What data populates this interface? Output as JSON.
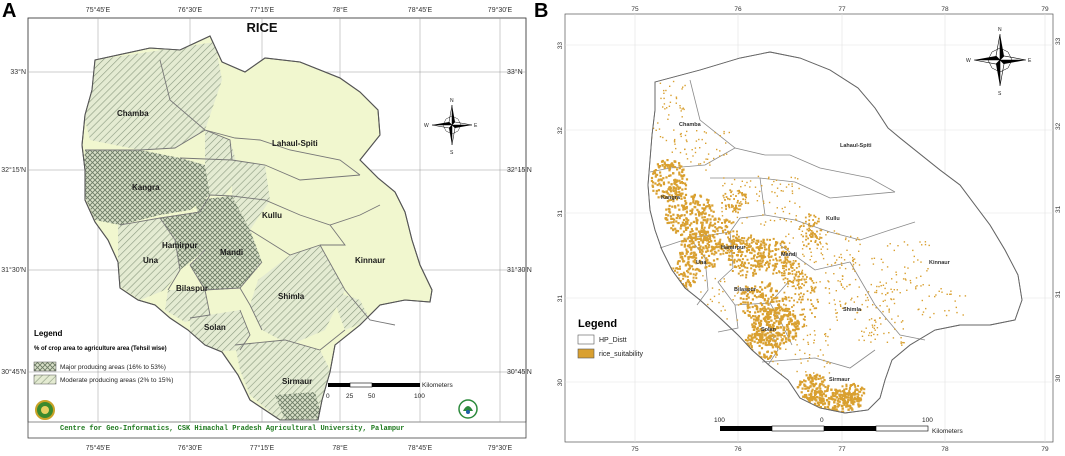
{
  "panel_a": {
    "letter": "A",
    "title": "RICE",
    "lon_ticks": [
      "75°45'E",
      "76°30'E",
      "77°15'E",
      "78°E",
      "78°45'E",
      "79°30'E"
    ],
    "lat_ticks": [
      "33°N",
      "32°15'N",
      "31°30'N",
      "30°45'N"
    ],
    "districts": [
      "Chamba",
      "Lahaul-Spiti",
      "Kangra",
      "Kullu",
      "Hamirpur",
      "Una",
      "Mandi",
      "Kinnaur",
      "Bilaspur",
      "Shimla",
      "Solan",
      "Sirmaur"
    ],
    "legend": {
      "title": "Legend",
      "subtitle": "% of crop area to agriculture area (Tehsil wise)",
      "items": [
        "Major producing areas (16% to 53%)",
        "Moderate producing areas (2% to 15%)"
      ]
    },
    "scale": {
      "unit": "Kilometers",
      "labels": [
        "0",
        "25",
        "50",
        "100"
      ]
    },
    "credit": "Centre for Geo-Informatics, CSK Himachal Pradesh Agricultural University, Palampur",
    "compass": [
      "N",
      "S",
      "E",
      "W"
    ]
  },
  "panel_b": {
    "letter": "B",
    "lon_ticks": [
      "75",
      "76",
      "77",
      "78",
      "79"
    ],
    "lat_ticks": [
      "33",
      "32",
      "31",
      "31",
      "30"
    ],
    "districts": [
      "Chamba",
      "Lahaul-Spiti",
      "Kangra",
      "Kullu",
      "Hamirpur",
      "Una",
      "Mandi",
      "Kinnaur",
      "Bilaspur",
      "Shimla",
      "Solan",
      "Sirmaur"
    ],
    "legend": {
      "title": "Legend",
      "items": [
        "HP_Distt",
        "rice_suitability"
      ]
    },
    "scale": {
      "unit": "Kilometers",
      "labels": [
        "100",
        "0",
        "100"
      ]
    },
    "compass": [
      "N",
      "S",
      "E",
      "W"
    ]
  },
  "colors": {
    "map_fill": "#f1f7cf",
    "hatch": "#8a9a80",
    "suitability": "#d9a030",
    "boundary_a": "#777777",
    "boundary_b": "#8a8a8a"
  }
}
